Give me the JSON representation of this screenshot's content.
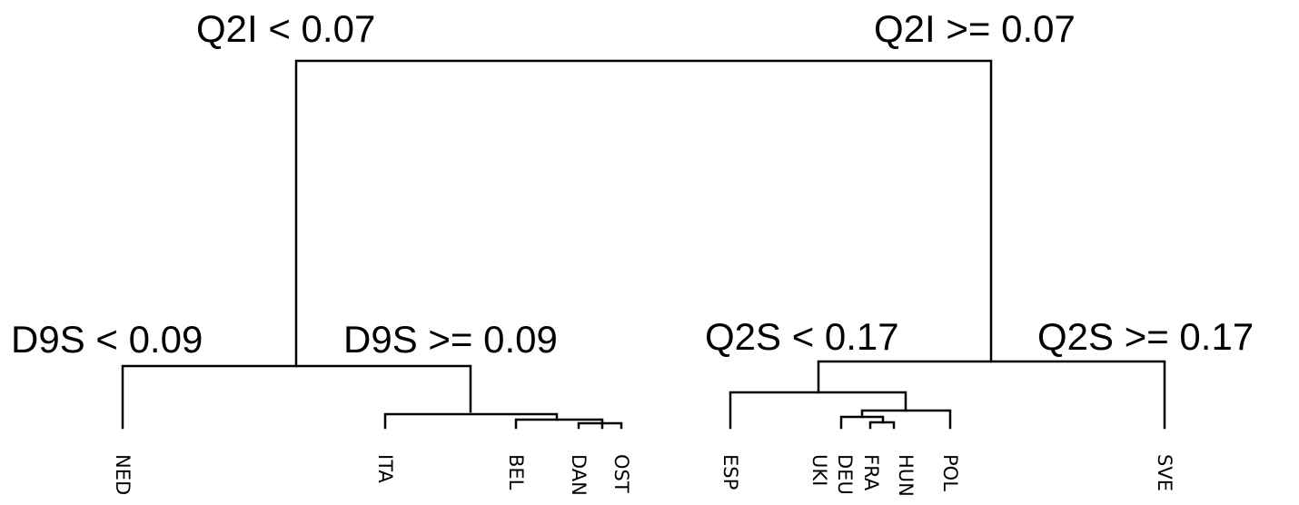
{
  "diagram": {
    "type": "regression-tree",
    "splits": {
      "root_left": "Q2I < 0.07",
      "root_right": "Q2I >= 0.07",
      "left_left": "D9S < 0.09",
      "left_right": "D9S >= 0.09",
      "right_left": "Q2S < 0.17",
      "right_right": "Q2S >= 0.17"
    },
    "leaves": [
      "NED",
      "ITA",
      "BEL",
      "DAN",
      "OST",
      "ESP",
      "UKI",
      "DEU",
      "FRA",
      "HUN",
      "POL",
      "SVE"
    ]
  }
}
